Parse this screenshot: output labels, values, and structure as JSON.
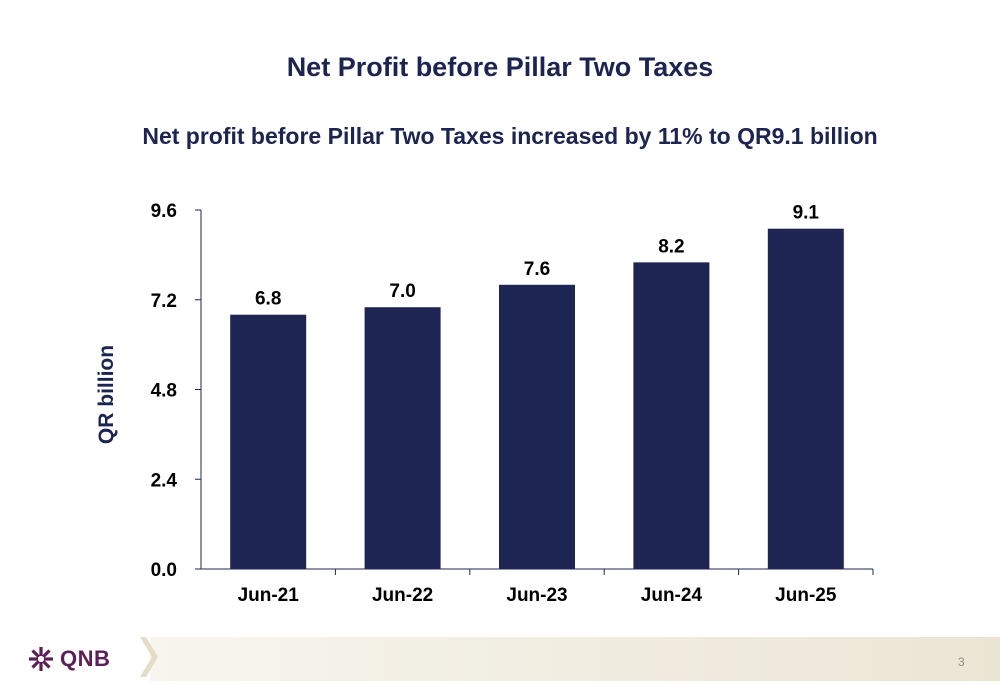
{
  "header": {
    "title": "Net Profit before Pillar Two Taxes",
    "subtitle": "Net profit before Pillar Two Taxes increased by 11% to QR9.1 billion"
  },
  "chart_data": {
    "type": "bar",
    "categories": [
      "Jun-21",
      "Jun-22",
      "Jun-23",
      "Jun-24",
      "Jun-25"
    ],
    "values": [
      6.8,
      7.0,
      7.6,
      8.2,
      9.1
    ],
    "data_labels": [
      "6.8",
      "7.0",
      "7.6",
      "8.2",
      "9.1"
    ],
    "title": "",
    "xlabel": "",
    "ylabel": "QR billion",
    "ylim": [
      0,
      9.6
    ],
    "yticks": [
      "0.0",
      "2.4",
      "4.8",
      "7.2",
      "9.6"
    ],
    "ytick_values": [
      0,
      2.4,
      4.8,
      7.2,
      9.6
    ],
    "grid": false,
    "bar_color": "#1f2552"
  },
  "footer": {
    "logo_text": "QNB",
    "logo_icon": "qnb-snowflake-icon",
    "page_number": "3"
  }
}
